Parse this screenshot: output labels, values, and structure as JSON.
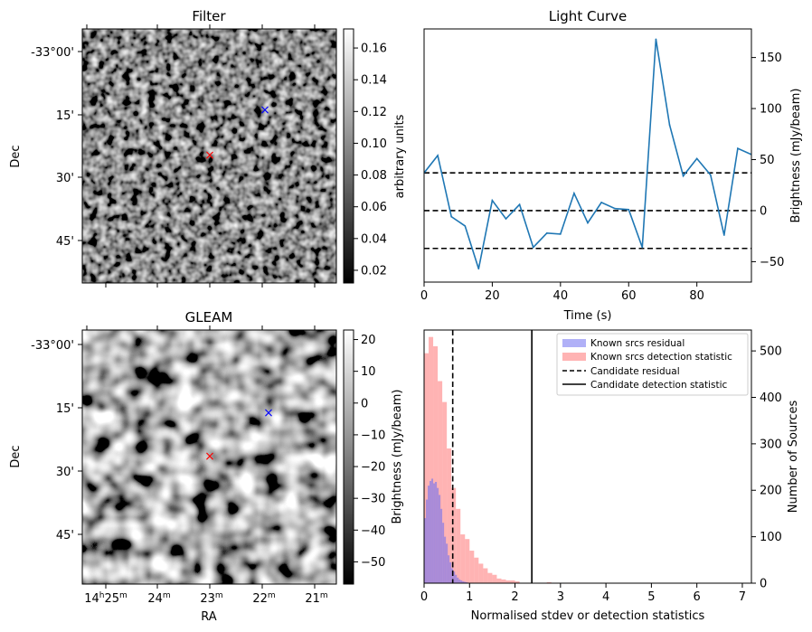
{
  "colors": {
    "line": "#1f77b4",
    "known_residual": "#7070f0",
    "known_detection": "#ff8080",
    "candidate_filter_marker": "#ff0000",
    "candidate_gleam_marker": "#ff0000",
    "known_marker": "#0000ff"
  },
  "filter_panel": {
    "title": "Filter",
    "ylabel": "Dec",
    "yticks": [
      "-33°00'",
      "15'",
      "30'",
      "45'"
    ],
    "colorbar": {
      "label": "arbitrary units",
      "ticks": [
        "0.16",
        "0.14",
        "0.12",
        "0.10",
        "0.08",
        "0.06",
        "0.04",
        "0.02"
      ],
      "range": [
        0.012,
        0.172
      ]
    },
    "markers": [
      {
        "symbol": "×",
        "kind": "candidate"
      },
      {
        "symbol": "×",
        "kind": "known"
      }
    ]
  },
  "gleam_panel": {
    "title": "GLEAM",
    "ylabel": "Dec",
    "xlabel": "RA",
    "yticks": [
      "-33°00'",
      "15'",
      "30'",
      "45'"
    ],
    "xticks": [
      {
        "h": "14",
        "hs": "h",
        "m": "25",
        "ms": "m"
      },
      {
        "h": "",
        "hs": "",
        "m": "24",
        "ms": "m"
      },
      {
        "h": "",
        "hs": "",
        "m": "23",
        "ms": "m"
      },
      {
        "h": "",
        "hs": "",
        "m": "22",
        "ms": "m"
      },
      {
        "h": "",
        "hs": "",
        "m": "21",
        "ms": "m"
      }
    ],
    "colorbar": {
      "label": "Brightness (mJy/beam)",
      "ticks": [
        "20",
        "10",
        "0",
        "−10",
        "−20",
        "−30",
        "−40",
        "−50"
      ],
      "range": [
        -57,
        23
      ]
    },
    "markers": [
      {
        "symbol": "×",
        "kind": "candidate"
      },
      {
        "symbol": "×",
        "kind": "known"
      }
    ]
  },
  "chart_data": [
    {
      "type": "line",
      "title": "Light Curve",
      "xlabel": "Time (s)",
      "ylabel": "Brightness (mJy/beam)",
      "xlim": [
        0,
        96
      ],
      "ylim": [
        -70,
        178
      ],
      "xticks": [
        0,
        20,
        40,
        60,
        80
      ],
      "yticks": [
        -50,
        0,
        50,
        100,
        150
      ],
      "x": [
        0,
        4,
        8,
        12,
        16,
        20,
        24,
        28,
        32,
        36,
        40,
        44,
        48,
        52,
        56,
        60,
        64,
        68,
        72,
        76,
        80,
        84,
        88,
        92,
        96
      ],
      "y": [
        37,
        54,
        -6,
        -15,
        -57,
        10,
        -8,
        6,
        -36,
        -22,
        -23,
        17,
        -12,
        8,
        2,
        1,
        -36,
        168,
        84,
        34,
        51,
        35,
        -24,
        61,
        55
      ],
      "hlines": [
        37,
        0,
        -37
      ]
    },
    {
      "type": "bar",
      "title": "",
      "xlabel": "Normalised stdev or detection statistics",
      "ylabel": "Number of Sources",
      "xlim": [
        0,
        7.2
      ],
      "ylim": [
        0,
        545
      ],
      "xticks": [
        0,
        1,
        2,
        3,
        4,
        5,
        6,
        7
      ],
      "yticks": [
        0,
        100,
        200,
        300,
        400,
        500
      ],
      "legend": {
        "placement": "upper-right",
        "items": [
          "Known srcs residual",
          "Known srcs detection statistic",
          "Candidate residual",
          "Candidate detection statistic"
        ]
      },
      "series": [
        {
          "name": "Known srcs detection statistic",
          "bin_start": 0,
          "bin_width": 0.1,
          "values": [
            495,
            530,
            510,
            435,
            390,
            290,
            205,
            160,
            105,
            95,
            70,
            55,
            42,
            32,
            22,
            18,
            10,
            8,
            6,
            6,
            4,
            0,
            0,
            0,
            0,
            0,
            0,
            2,
            0,
            1,
            0,
            1,
            0,
            0,
            1,
            1,
            0,
            0,
            0,
            1,
            0,
            0,
            0,
            1,
            1,
            0,
            0,
            0,
            0,
            1,
            0,
            1,
            0,
            0,
            0,
            0,
            0,
            1,
            1,
            0,
            1,
            0,
            0,
            0,
            0,
            0,
            0,
            0,
            1,
            0,
            0,
            0
          ]
        },
        {
          "name": "Known srcs residual",
          "bin_start": 0,
          "bin_width": 0.04,
          "values": [
            140,
            180,
            210,
            220,
            225,
            215,
            218,
            205,
            190,
            160,
            130,
            100,
            85,
            60,
            45,
            32,
            25,
            18,
            12,
            8,
            6,
            4,
            3,
            2,
            1
          ]
        }
      ],
      "vlines": [
        {
          "name": "Candidate residual",
          "x": 0.63,
          "style": "dashed"
        },
        {
          "name": "Candidate detection statistic",
          "x": 2.37,
          "style": "solid"
        }
      ]
    }
  ]
}
